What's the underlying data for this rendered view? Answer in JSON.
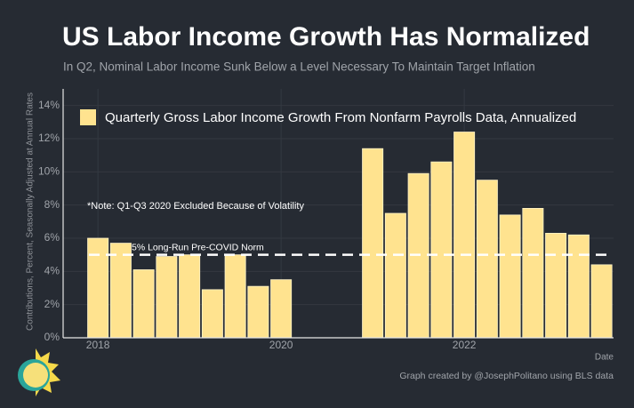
{
  "chart_data": {
    "type": "bar",
    "title": "US Labor Income Growth Has Normalized",
    "subtitle": "In Q2, Nominal Labor Income Sunk Below a Level Necessary To Maintain Target Inflation",
    "y_label": "Contributions, Percent, Seasonally Adjusted at Annual Rates",
    "x_label": "Date",
    "caption": "Graph created by @JosephPolitano using BLS data",
    "note": "*Note: Q1-Q3 2020 Excluded Because of Volatility",
    "reference_line": {
      "value": 5,
      "label": "5% Long-Run Pre-COVID Norm"
    },
    "series": [
      {
        "name": "Quarterly Gross Labor Income Growth From Nonfarm Payrolls Data, Annualized",
        "color": "#ffe38f",
        "x": [
          2018,
          2018.25,
          2018.5,
          2018.75,
          2019,
          2019.25,
          2019.5,
          2019.75,
          2020,
          2021,
          2021.25,
          2021.5,
          2021.75,
          2022,
          2022.25,
          2022.5,
          2022.75,
          2023,
          2023.25,
          2023.5
        ],
        "values": [
          6.0,
          5.7,
          4.1,
          4.9,
          5.0,
          2.9,
          5.0,
          3.1,
          3.5,
          11.4,
          7.5,
          9.9,
          10.6,
          12.4,
          9.5,
          7.4,
          7.8,
          6.3,
          6.2,
          4.4
        ]
      }
    ],
    "xlim": [
      2017.62,
      2023.63
    ],
    "xticks": [
      2018,
      2020,
      2022
    ],
    "ylim": [
      0,
      15
    ],
    "yticks": [
      {
        "value": 0,
        "label": "0%"
      },
      {
        "value": 2,
        "label": "2%"
      },
      {
        "value": 4,
        "label": "4%"
      },
      {
        "value": 6,
        "label": "6%"
      },
      {
        "value": 8,
        "label": "8%"
      },
      {
        "value": 10,
        "label": "10%"
      },
      {
        "value": 12,
        "label": "12%"
      },
      {
        "value": 14,
        "label": "14%"
      }
    ],
    "grid": true
  }
}
